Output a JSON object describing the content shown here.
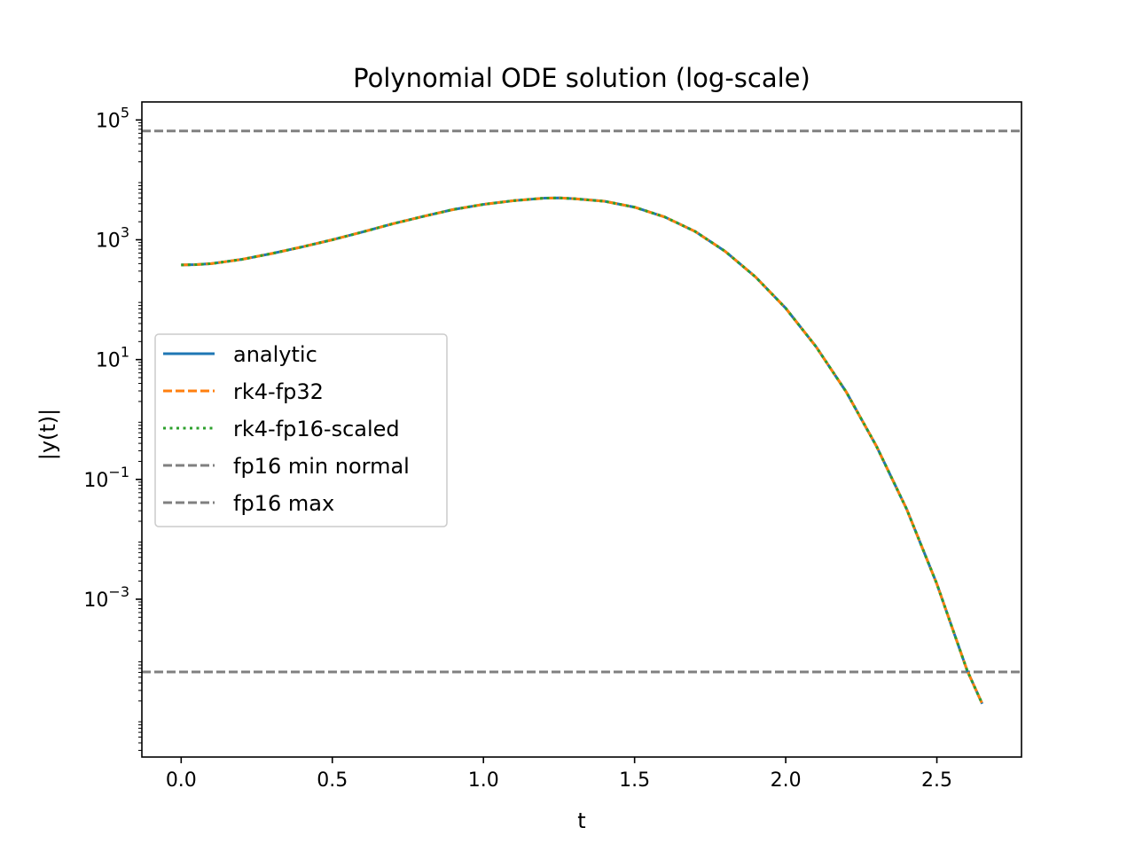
{
  "chart_data": {
    "type": "line",
    "title": "Polynomial ODE solution (log-scale)",
    "xlabel": "t",
    "ylabel": "|y(t)|",
    "xlim": [
      -0.13,
      2.78
    ],
    "ylim": [
      2.32e-06,
      200000
    ],
    "yscale": "log",
    "grid": false,
    "legend_position": "center-left",
    "x_ticks": [
      0.0,
      0.5,
      1.0,
      1.5,
      2.0,
      2.5
    ],
    "x_tick_labels": [
      "0.0",
      "0.5",
      "1.0",
      "1.5",
      "2.0",
      "2.5"
    ],
    "y_ticks": [
      {
        "value": 0.001,
        "base": "10",
        "exp": "−3"
      },
      {
        "value": 0.1,
        "base": "10",
        "exp": "−1"
      },
      {
        "value": 10,
        "base": "10",
        "exp": "1"
      },
      {
        "value": 1000,
        "base": "10",
        "exp": "3"
      },
      {
        "value": 100000,
        "base": "10",
        "exp": "5"
      }
    ],
    "x": [
      0.0,
      0.05,
      0.1,
      0.2,
      0.3,
      0.4,
      0.5,
      0.6,
      0.7,
      0.8,
      0.9,
      1.0,
      1.1,
      1.2,
      1.25,
      1.3,
      1.4,
      1.5,
      1.6,
      1.7,
      1.8,
      1.9,
      2.0,
      2.1,
      2.2,
      2.3,
      2.4,
      2.5,
      2.6,
      2.65
    ],
    "series": [
      {
        "name": "analytic",
        "color": "#1f77b4",
        "style": "solid",
        "values": [
          380,
          385,
          400,
          470,
          590,
          760,
          1000,
          1350,
          1850,
          2450,
          3200,
          3900,
          4500,
          4950,
          5000,
          4850,
          4400,
          3500,
          2400,
          1380,
          640,
          240,
          72,
          16.5,
          2.9,
          0.36,
          0.032,
          0.0018,
          6.5e-05,
          1.8e-05
        ]
      },
      {
        "name": "rk4-fp32",
        "color": "#ff7f0e",
        "style": "dashed",
        "values": [
          380,
          385,
          400,
          470,
          590,
          760,
          1000,
          1350,
          1850,
          2450,
          3200,
          3900,
          4500,
          4950,
          5000,
          4850,
          4400,
          3500,
          2400,
          1380,
          640,
          240,
          72,
          16.5,
          2.9,
          0.36,
          0.032,
          0.0018,
          6.5e-05,
          1.8e-05
        ]
      },
      {
        "name": "rk4-fp16-scaled",
        "color": "#2ca02c",
        "style": "dotted",
        "values": [
          380,
          385,
          400,
          470,
          590,
          760,
          1000,
          1350,
          1850,
          2450,
          3200,
          3900,
          4500,
          4950,
          5000,
          4850,
          4400,
          3500,
          2400,
          1380,
          640,
          240,
          72,
          16.5,
          2.9,
          0.36,
          0.032,
          0.0018,
          6.5e-05,
          1.8e-05
        ]
      }
    ],
    "reference_lines": [
      {
        "name": "fp16 min normal",
        "value": 6.10352e-05,
        "color": "#808080",
        "style": "dashed"
      },
      {
        "name": "fp16 max",
        "value": 65504,
        "color": "#808080",
        "style": "dashed"
      }
    ]
  }
}
